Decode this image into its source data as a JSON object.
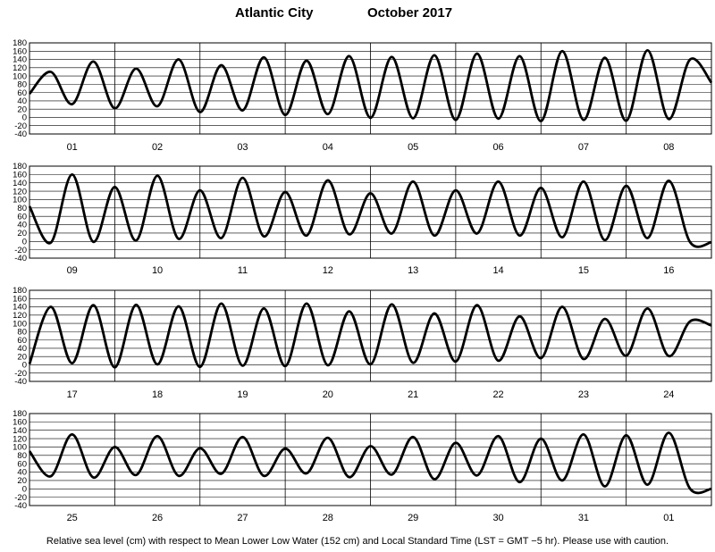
{
  "title": {
    "location": "Atlantic City",
    "month_year": "October   2017"
  },
  "footer": "Relative sea level (cm) with respect to Mean Lower Low Water (152 cm) and Local Standard Time (LST = GMT −5 hr). Please use with caution.",
  "colors": {
    "line": "#000000",
    "grid": "#000000",
    "background": "#ffffff"
  },
  "chart_data": {
    "type": "line",
    "yticks": [
      180,
      160,
      140,
      120,
      100,
      80,
      60,
      40,
      20,
      0,
      -20,
      -40
    ],
    "ylim": [
      -40,
      180
    ],
    "grid": true,
    "panels": [
      {
        "days": [
          "01",
          "02",
          "03",
          "04",
          "05",
          "06",
          "07",
          "08"
        ],
        "x": [
          0,
          6,
          12,
          18,
          24,
          30,
          36,
          42,
          48,
          54,
          60,
          66,
          72,
          78,
          84,
          90,
          96,
          102,
          108,
          114,
          120,
          126,
          132,
          138,
          144,
          150,
          156,
          162,
          168,
          174,
          180,
          186,
          192
        ],
        "y": [
          57,
          110,
          32,
          135,
          22,
          118,
          27,
          140,
          13,
          126,
          17,
          145,
          6,
          137,
          8,
          148,
          -1,
          146,
          -2,
          150,
          -6,
          154,
          -3,
          148,
          -9,
          160,
          -6,
          144,
          -8,
          162,
          -4,
          140,
          84
        ]
      },
      {
        "days": [
          "09",
          "10",
          "11",
          "12",
          "13",
          "14",
          "15",
          "16"
        ],
        "x": [
          0,
          6,
          12,
          18,
          24,
          30,
          36,
          42,
          48,
          54,
          60,
          66,
          72,
          78,
          84,
          90,
          96,
          102,
          108,
          114,
          120,
          126,
          132,
          138,
          144,
          150,
          156,
          162,
          168,
          174,
          180,
          186,
          192
        ],
        "y": [
          84,
          -3,
          160,
          -1,
          130,
          2,
          157,
          6,
          122,
          8,
          152,
          12,
          118,
          14,
          146,
          17,
          115,
          19,
          143,
          14,
          122,
          19,
          143,
          14,
          128,
          10,
          143,
          3,
          133,
          8,
          145,
          -2,
          -2
        ]
      },
      {
        "days": [
          "17",
          "18",
          "19",
          "20",
          "21",
          "22",
          "23",
          "24"
        ],
        "x": [
          0,
          6,
          12,
          18,
          24,
          30,
          36,
          42,
          48,
          54,
          60,
          66,
          72,
          78,
          84,
          90,
          96,
          102,
          108,
          114,
          120,
          126,
          132,
          138,
          144,
          150,
          156,
          162,
          168,
          174,
          180,
          186,
          192
        ],
        "y": [
          2,
          140,
          4,
          144,
          -6,
          145,
          1,
          141,
          -5,
          148,
          -2,
          136,
          -3,
          148,
          -1,
          129,
          1,
          146,
          5,
          124,
          8,
          144,
          10,
          117,
          16,
          140,
          14,
          111,
          22,
          136,
          21,
          105,
          95
        ]
      },
      {
        "days": [
          "25",
          "26",
          "27",
          "28",
          "29",
          "30",
          "31",
          "01"
        ],
        "x": [
          0,
          6,
          12,
          18,
          24,
          30,
          36,
          42,
          48,
          54,
          60,
          66,
          72,
          78,
          84,
          90,
          96,
          102,
          108,
          114,
          120,
          126,
          132,
          138,
          144,
          150,
          156,
          162,
          168,
          174,
          180,
          186,
          192
        ],
        "y": [
          90,
          30,
          130,
          27,
          100,
          33,
          126,
          31,
          97,
          36,
          124,
          31,
          96,
          37,
          122,
          28,
          102,
          34,
          124,
          23,
          110,
          32,
          126,
          16,
          120,
          20,
          130,
          6,
          128,
          10,
          134,
          0,
          0
        ]
      }
    ]
  }
}
